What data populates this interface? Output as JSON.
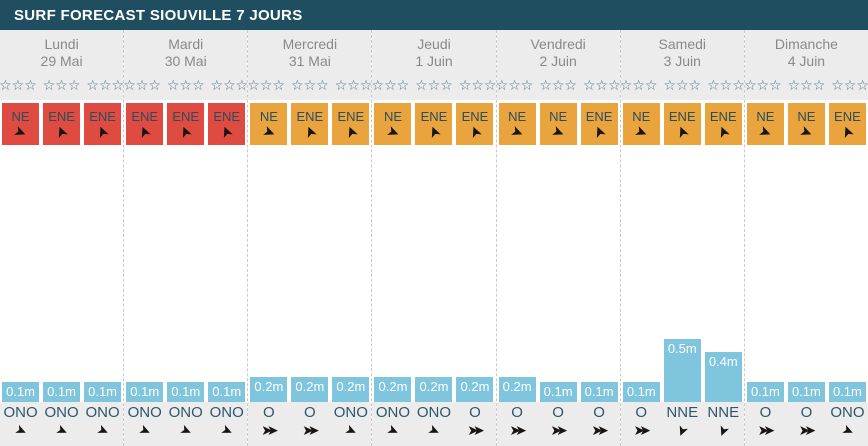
{
  "header": {
    "title": "SURF FORECAST SIOUVILLE 7 JOURS"
  },
  "colors": {
    "header_bg": "#1e4e5f",
    "strip_gray": "#ececed",
    "wind_red": "#df4b41",
    "wind_orange": "#e9a43d",
    "wave_blue": "#7fc5de",
    "day_text": "#898989",
    "direction_text": "#2b4d5c",
    "star_outline": "#4d7584"
  },
  "icons": {
    "star_empty": "☆",
    "direction_arrow": "➤"
  },
  "chart_data": {
    "type": "bar",
    "title": "SURF FORECAST SIOUVILLE 7 JOURS",
    "unit": "m",
    "slots_per_day": 3,
    "ylim_m": [
      0,
      0.5
    ],
    "days": [
      {
        "name": "Lundi",
        "date": "29 Mai",
        "stars_filled": 0,
        "stars_total": 9,
        "wind_color": "red",
        "wind_directions": [
          "NE",
          "ENE",
          "ENE"
        ],
        "waves": [
          {
            "height_m": 0.1,
            "label": "0.1m",
            "swell_dir": "ONO"
          },
          {
            "height_m": 0.1,
            "label": "0.1m",
            "swell_dir": "ONO"
          },
          {
            "height_m": 0.1,
            "label": "0.1m",
            "swell_dir": "ONO"
          }
        ]
      },
      {
        "name": "Mardi",
        "date": "30 Mai",
        "stars_filled": 0,
        "stars_total": 9,
        "wind_color": "red",
        "wind_directions": [
          "ENE",
          "ENE",
          "ENE"
        ],
        "waves": [
          {
            "height_m": 0.1,
            "label": "0.1m",
            "swell_dir": "ONO"
          },
          {
            "height_m": 0.1,
            "label": "0.1m",
            "swell_dir": "ONO"
          },
          {
            "height_m": 0.1,
            "label": "0.1m",
            "swell_dir": "ONO"
          }
        ]
      },
      {
        "name": "Mercredi",
        "date": "31 Mai",
        "stars_filled": 0,
        "stars_total": 9,
        "wind_color": "orange",
        "wind_directions": [
          "NE",
          "ENE",
          "ENE"
        ],
        "waves": [
          {
            "height_m": 0.2,
            "label": "0.2m",
            "swell_dir": "O"
          },
          {
            "height_m": 0.2,
            "label": "0.2m",
            "swell_dir": "O"
          },
          {
            "height_m": 0.2,
            "label": "0.2m",
            "swell_dir": "ONO"
          }
        ]
      },
      {
        "name": "Jeudi",
        "date": "1 Juin",
        "stars_filled": 0,
        "stars_total": 9,
        "wind_color": "orange",
        "wind_directions": [
          "NE",
          "ENE",
          "ENE"
        ],
        "waves": [
          {
            "height_m": 0.2,
            "label": "0.2m",
            "swell_dir": "ONO"
          },
          {
            "height_m": 0.2,
            "label": "0.2m",
            "swell_dir": "ONO"
          },
          {
            "height_m": 0.2,
            "label": "0.2m",
            "swell_dir": "O"
          }
        ]
      },
      {
        "name": "Vendredi",
        "date": "2 Juin",
        "stars_filled": 0,
        "stars_total": 9,
        "wind_color": "orange",
        "wind_directions": [
          "NE",
          "NE",
          "ENE"
        ],
        "waves": [
          {
            "height_m": 0.2,
            "label": "0.2m",
            "swell_dir": "O"
          },
          {
            "height_m": 0.1,
            "label": "0.1m",
            "swell_dir": "O"
          },
          {
            "height_m": 0.1,
            "label": "0.1m",
            "swell_dir": "O"
          }
        ]
      },
      {
        "name": "Samedi",
        "date": "3 Juin",
        "stars_filled": 0,
        "stars_total": 9,
        "wind_color": "orange",
        "wind_directions": [
          "NE",
          "ENE",
          "ENE"
        ],
        "waves": [
          {
            "height_m": 0.1,
            "label": "0.1m",
            "swell_dir": "O"
          },
          {
            "height_m": 0.5,
            "label": "0.5m",
            "swell_dir": "NNE"
          },
          {
            "height_m": 0.4,
            "label": "0.4m",
            "swell_dir": "NNE"
          }
        ]
      },
      {
        "name": "Dimanche",
        "date": "4 Juin",
        "stars_filled": 0,
        "stars_total": 9,
        "wind_color": "orange",
        "wind_directions": [
          "NE",
          "NE",
          "ENE"
        ],
        "waves": [
          {
            "height_m": 0.1,
            "label": "0.1m",
            "swell_dir": "O"
          },
          {
            "height_m": 0.1,
            "label": "0.1m",
            "swell_dir": "O"
          },
          {
            "height_m": 0.1,
            "label": "0.1m",
            "swell_dir": "ONO"
          }
        ]
      }
    ]
  }
}
